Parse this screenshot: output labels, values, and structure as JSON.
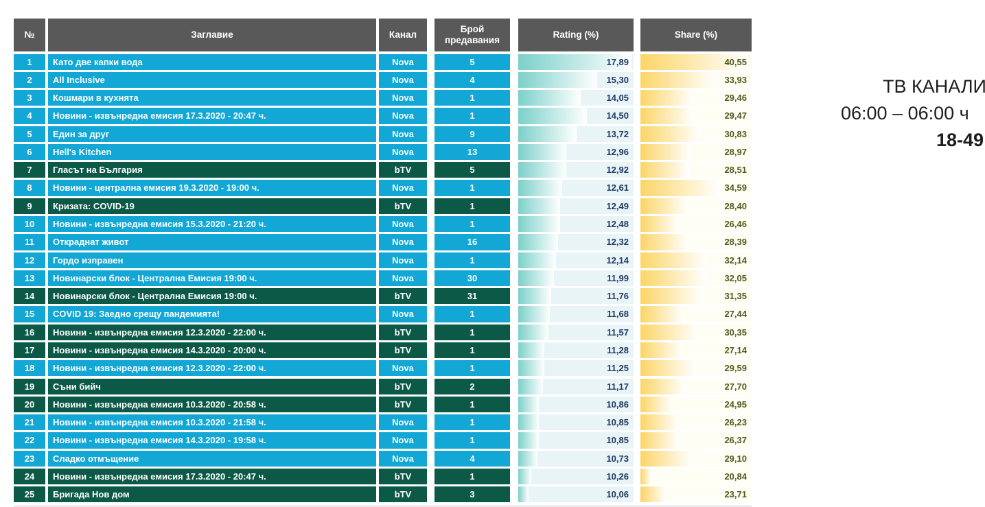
{
  "side_caption": {
    "lines": [
      "ТВ КАНАЛИ",
      "06:00 – 06:00 ч",
      "18-49"
    ]
  },
  "colors": {
    "nova_row": "#12A7D5",
    "btv_row": "#0C5947",
    "header_bg": "#595959",
    "rating_bar": "#7CD0CA",
    "rating_cell_bg": "#E9F4F6",
    "rating_text": "#1F3864",
    "share_bar": "#FBD567",
    "share_cell_bg": "#FFFEF5",
    "share_text": "#4E5A1E"
  },
  "table": {
    "headers": [
      "№",
      "Заглавие",
      "Канал",
      "Брой предавания",
      "Rating (%)",
      "Share (%)"
    ],
    "rating_bar_range": [
      9.27,
      18.07
    ],
    "share_bar_range": [
      18.57,
      41.23
    ],
    "rows": [
      {
        "num": "1",
        "title": "Като две капки вода",
        "channel": "Nova",
        "count": "5",
        "rating": "17,89",
        "share": "40,55"
      },
      {
        "num": "2",
        "title": "All Inclusive",
        "channel": "Nova",
        "count": "4",
        "rating": "15,30",
        "share": "33,93"
      },
      {
        "num": "3",
        "title": "Кошмари в кухнята",
        "channel": "Nova",
        "count": "1",
        "rating": "14,05",
        "share": "29,46"
      },
      {
        "num": "4",
        "title": "Новини - извънредна емисия 17.3.2020 - 20:47 ч.",
        "channel": "Nova",
        "count": "1",
        "rating": "14,50",
        "share": "29,47"
      },
      {
        "num": "5",
        "title": "Един за друг",
        "channel": "Nova",
        "count": "9",
        "rating": "13,72",
        "share": "30,83"
      },
      {
        "num": "6",
        "title": "Hell's Kitchen",
        "channel": "Nova",
        "count": "13",
        "rating": "12,96",
        "share": "28,97"
      },
      {
        "num": "7",
        "title": "Гласът на България",
        "channel": "bTV",
        "count": "5",
        "rating": "12,92",
        "share": "28,51"
      },
      {
        "num": "8",
        "title": "Новини - централна емисия 19.3.2020 - 19:00 ч.",
        "channel": "Nova",
        "count": "1",
        "rating": "12,61",
        "share": "34,59"
      },
      {
        "num": "9",
        "title": "Кризата: COVID-19",
        "channel": "bTV",
        "count": "1",
        "rating": "12,49",
        "share": "28,40"
      },
      {
        "num": "10",
        "title": "Новини - извънредна емисия 15.3.2020 - 21:20 ч.",
        "channel": "Nova",
        "count": "1",
        "rating": "12,48",
        "share": "26,46"
      },
      {
        "num": "11",
        "title": "Откраднат живот",
        "channel": "Nova",
        "count": "16",
        "rating": "12,32",
        "share": "28,39"
      },
      {
        "num": "12",
        "title": "Гордо изправен",
        "channel": "Nova",
        "count": "1",
        "rating": "12,14",
        "share": "32,14"
      },
      {
        "num": "13",
        "title": "Новинарски блок - Централна Емисия 19:00 ч.",
        "channel": "Nova",
        "count": "30",
        "rating": "11,99",
        "share": "32,05"
      },
      {
        "num": "14",
        "title": "Новинарски блок - Централна Емисия 19:00 ч.",
        "channel": "bTV",
        "count": "31",
        "rating": "11,76",
        "share": "31,35"
      },
      {
        "num": "15",
        "title": "COVID 19: Заедно срещу пандемията!",
        "channel": "Nova",
        "count": "1",
        "rating": "11,68",
        "share": "27,44"
      },
      {
        "num": "16",
        "title": "Новини - извънредна емисия 12.3.2020 - 22:00 ч.",
        "channel": "bTV",
        "count": "1",
        "rating": "11,57",
        "share": "30,35"
      },
      {
        "num": "17",
        "title": "Новини - извънредна емисия 14.3.2020 - 20:00 ч.",
        "channel": "bTV",
        "count": "1",
        "rating": "11,28",
        "share": "27,14"
      },
      {
        "num": "18",
        "title": "Новини - извънредна емисия 12.3.2020 - 22:00 ч.",
        "channel": "Nova",
        "count": "1",
        "rating": "11,25",
        "share": "29,59"
      },
      {
        "num": "19",
        "title": "Съни бийч",
        "channel": "bTV",
        "count": "2",
        "rating": "11,17",
        "share": "27,70"
      },
      {
        "num": "20",
        "title": "Новини - извънредна емисия 10.3.2020 - 20:58 ч.",
        "channel": "bTV",
        "count": "1",
        "rating": "10,86",
        "share": "24,95"
      },
      {
        "num": "21",
        "title": "Новини - извънредна емисия 10.3.2020 - 21:58 ч.",
        "channel": "Nova",
        "count": "1",
        "rating": "10,85",
        "share": "26,23"
      },
      {
        "num": "22",
        "title": "Новини - извънредна емисия 14.3.2020 - 19:58 ч.",
        "channel": "Nova",
        "count": "1",
        "rating": "10,85",
        "share": "26,37"
      },
      {
        "num": "23",
        "title": "Сладко отмъщение",
        "channel": "Nova",
        "count": "4",
        "rating": "10,73",
        "share": "29,10"
      },
      {
        "num": "24",
        "title": "Новини - извънредна емисия 17.3.2020 - 20:47 ч.",
        "channel": "bTV",
        "count": "1",
        "rating": "10,26",
        "share": "20,84"
      },
      {
        "num": "25",
        "title": "Бригада Нов дом",
        "channel": "bTV",
        "count": "3",
        "rating": "10,06",
        "share": "23,71"
      }
    ]
  }
}
